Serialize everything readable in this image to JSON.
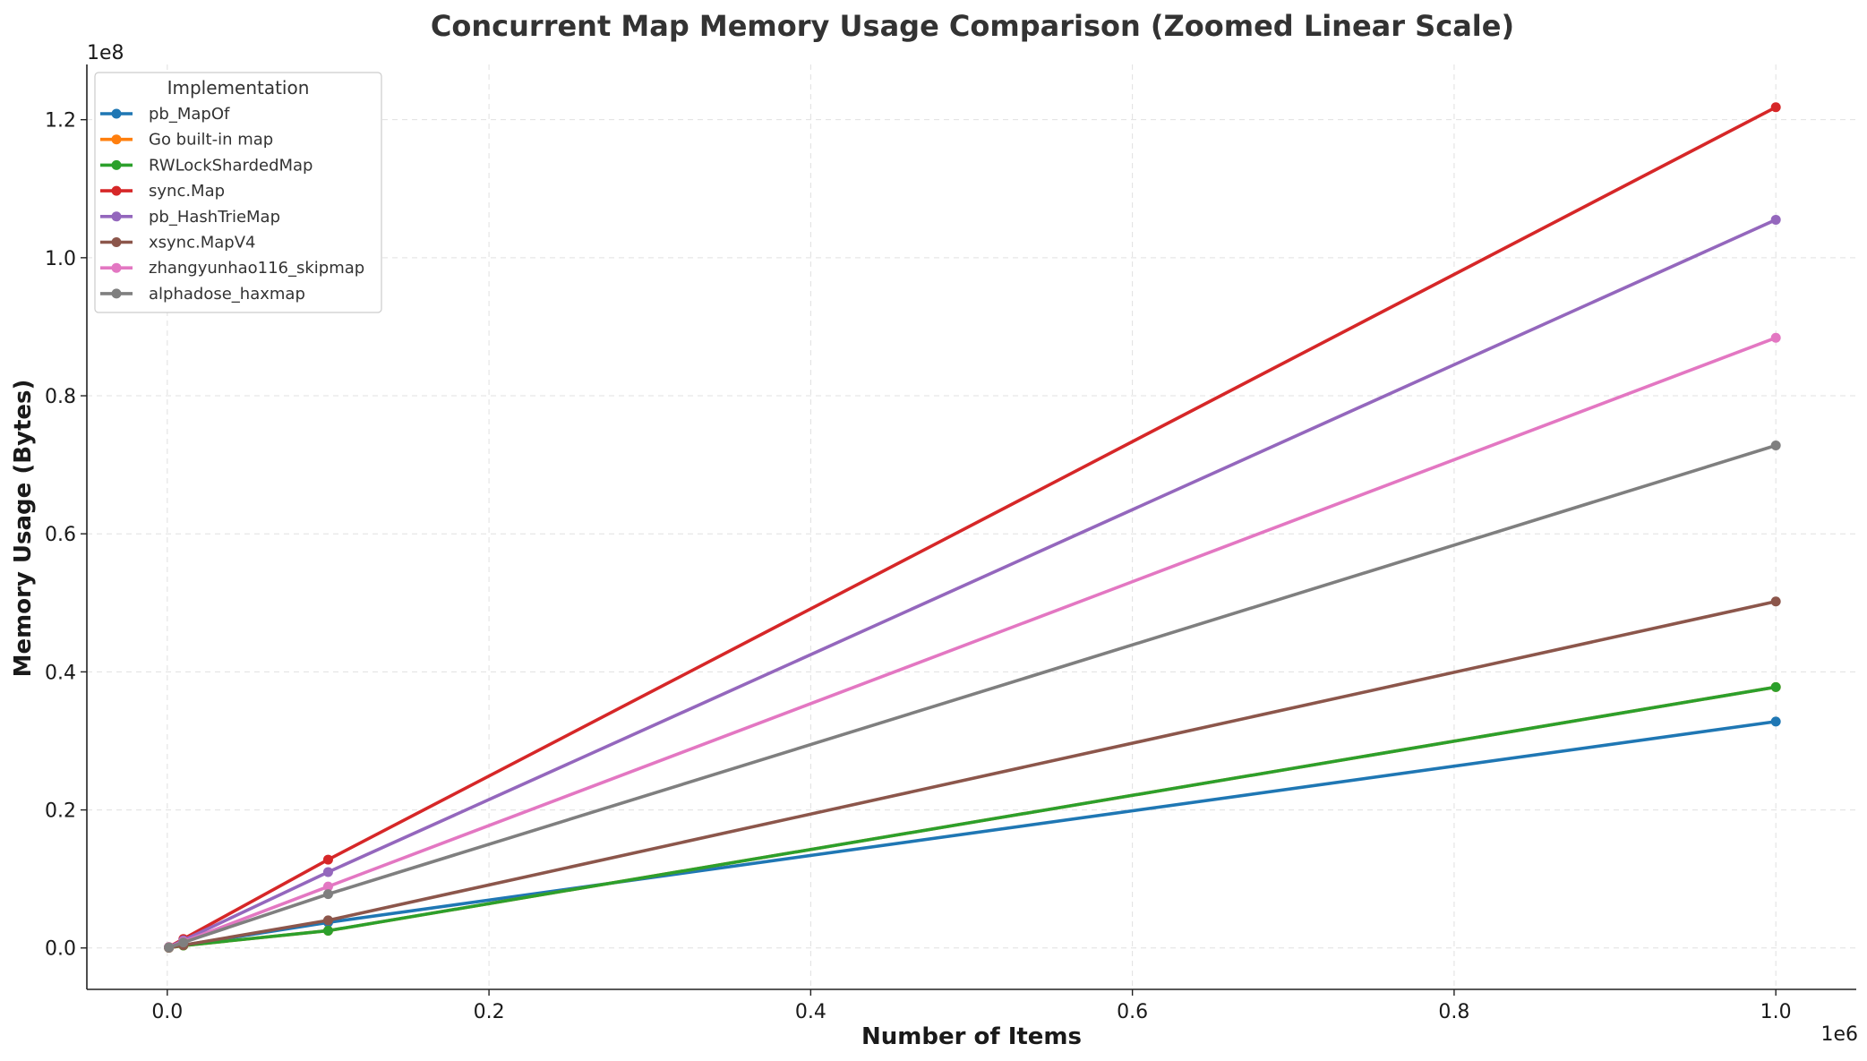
{
  "chart_data": {
    "type": "line",
    "title": "Concurrent Map Memory Usage Comparison (Zoomed Linear Scale)",
    "xlabel": "Number of Items",
    "ylabel": "Memory Usage (Bytes)",
    "x_offset_label": "1e6",
    "y_offset_label": "1e8",
    "x_scale": 1000000,
    "y_scale": 100000000,
    "xlim": [
      -50000,
      1050000
    ],
    "ylim": [
      -6000000,
      128000000
    ],
    "x_ticks": [
      0,
      200000,
      400000,
      600000,
      800000,
      1000000
    ],
    "x_tick_labels": [
      "0.0",
      "0.2",
      "0.4",
      "0.6",
      "0.8",
      "1.0"
    ],
    "y_ticks": [
      0,
      20000000,
      40000000,
      60000000,
      80000000,
      100000000,
      120000000
    ],
    "y_tick_labels": [
      "0.0",
      "0.2",
      "0.4",
      "0.6",
      "0.8",
      "1.0",
      "1.2"
    ],
    "grid": true,
    "legend_title": "Implementation",
    "legend_position": "top-left",
    "x": [
      1000,
      10000,
      100000,
      1000000
    ],
    "series": [
      {
        "name": "pb_MapOf",
        "color": "#1f77b4",
        "values": [
          50000,
          400000,
          3700000,
          32800000
        ]
      },
      {
        "name": "Go built-in map",
        "color": "#ff7f0e",
        "values": [
          40000,
          350000,
          2500000,
          37800000
        ]
      },
      {
        "name": "RWLockShardedMap",
        "color": "#2ca02c",
        "values": [
          40000,
          350000,
          2500000,
          37800000
        ]
      },
      {
        "name": "sync.Map",
        "color": "#d62728",
        "values": [
          130000,
          1300000,
          12800000,
          121800000
        ]
      },
      {
        "name": "pb_HashTrieMap",
        "color": "#9467bd",
        "values": [
          110000,
          1100000,
          11000000,
          105500000
        ]
      },
      {
        "name": "xsync.MapV4",
        "color": "#8c564b",
        "values": [
          40000,
          400000,
          4000000,
          50200000
        ]
      },
      {
        "name": "zhangyunhao116_skipmap",
        "color": "#e377c2",
        "values": [
          90000,
          900000,
          8900000,
          88400000
        ]
      },
      {
        "name": "alphadose_haxmap",
        "color": "#7f7f7f",
        "values": [
          80000,
          800000,
          7800000,
          72800000
        ]
      }
    ]
  }
}
